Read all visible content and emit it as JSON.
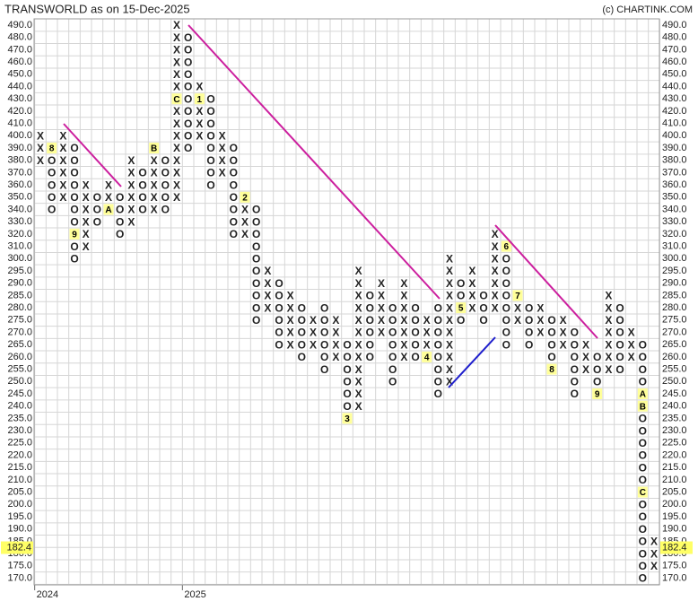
{
  "chart_data": {
    "type": "pointfigure",
    "title": "TRANSWORLD as on 15-Dec-2025",
    "credit": "(c) CHARTINK.COM",
    "ylim": [
      170,
      490
    ],
    "yticks": [
      {
        "value": 490,
        "label": "490.0"
      },
      {
        "value": 480,
        "label": "480.0"
      },
      {
        "value": 470,
        "label": "470.0"
      },
      {
        "value": 460,
        "label": "460.0"
      },
      {
        "value": 450,
        "label": "450.0"
      },
      {
        "value": 440,
        "label": "440.0"
      },
      {
        "value": 430,
        "label": "430.0"
      },
      {
        "value": 420,
        "label": "420.0"
      },
      {
        "value": 410,
        "label": "410.0"
      },
      {
        "value": 400,
        "label": "400.0"
      },
      {
        "value": 390,
        "label": "390.0"
      },
      {
        "value": 380,
        "label": "380.0"
      },
      {
        "value": 370,
        "label": "370.0"
      },
      {
        "value": 360,
        "label": "360.0"
      },
      {
        "value": 350,
        "label": "350.0"
      },
      {
        "value": 340,
        "label": "340.0"
      },
      {
        "value": 330,
        "label": "330.0"
      },
      {
        "value": 320,
        "label": "320.0"
      },
      {
        "value": 310,
        "label": "310.0"
      },
      {
        "value": 300,
        "label": "300.0"
      },
      {
        "value": 295,
        "label": "295.0"
      },
      {
        "value": 290,
        "label": "290.0"
      },
      {
        "value": 285,
        "label": "285.0"
      },
      {
        "value": 280,
        "label": "280.0"
      },
      {
        "value": 275,
        "label": "275.0"
      },
      {
        "value": 270,
        "label": "270.0"
      },
      {
        "value": 265,
        "label": "265.0"
      },
      {
        "value": 260,
        "label": "260.0"
      },
      {
        "value": 255,
        "label": "255.0"
      },
      {
        "value": 250,
        "label": "250.0"
      },
      {
        "value": 245,
        "label": "245.0"
      },
      {
        "value": 240,
        "label": "240.0"
      },
      {
        "value": 235,
        "label": "235.0"
      },
      {
        "value": 230,
        "label": "230.0"
      },
      {
        "value": 225,
        "label": "225.0"
      },
      {
        "value": 220,
        "label": "220.0"
      },
      {
        "value": 215,
        "label": "215.0"
      },
      {
        "value": 210,
        "label": "210.0"
      },
      {
        "value": 205,
        "label": "205.0"
      },
      {
        "value": 200,
        "label": "200.0"
      },
      {
        "value": 195,
        "label": "195.0"
      },
      {
        "value": 190,
        "label": "190.0"
      },
      {
        "value": 185,
        "label": "185.0"
      },
      {
        "value": 180,
        "label": "180.0"
      },
      {
        "value": 175,
        "label": "175.0"
      },
      {
        "value": 170,
        "label": "170.0"
      }
    ],
    "last_price": {
      "value": 182.4,
      "label": "182.4"
    },
    "years": [
      "2024",
      "2025"
    ],
    "colors": {
      "X": "#2e8b2e",
      "O": "#e02020"
    },
    "grid": true,
    "columns": [
      {
        "type": "X",
        "high": 400,
        "low": 380
      },
      {
        "type": "O",
        "high": 390,
        "low": 340,
        "months": [
          {
            "value": 390,
            "label": "8"
          }
        ]
      },
      {
        "type": "X",
        "high": 400,
        "low": 350
      },
      {
        "type": "O",
        "high": 390,
        "low": 300,
        "months": [
          {
            "value": 320,
            "label": "9"
          }
        ]
      },
      {
        "type": "X",
        "high": 360,
        "low": 310
      },
      {
        "type": "O",
        "high": 350,
        "low": 330
      },
      {
        "type": "X",
        "high": 360,
        "low": 340,
        "months": [
          {
            "value": 340,
            "label": "A"
          }
        ]
      },
      {
        "type": "O",
        "high": 350,
        "low": 320
      },
      {
        "type": "X",
        "high": 380,
        "low": 330
      },
      {
        "type": "O",
        "high": 370,
        "low": 340
      },
      {
        "type": "X",
        "high": 390,
        "low": 340,
        "months": [
          {
            "value": 390,
            "label": "B"
          }
        ]
      },
      {
        "type": "O",
        "high": 380,
        "low": 340
      },
      {
        "type": "X",
        "high": 490,
        "low": 350,
        "months": [
          {
            "value": 430,
            "label": "C"
          }
        ]
      },
      {
        "type": "O",
        "high": 480,
        "low": 390
      },
      {
        "type": "X",
        "high": 440,
        "low": 400,
        "months": [
          {
            "value": 430,
            "label": "1"
          }
        ]
      },
      {
        "type": "O",
        "high": 430,
        "low": 360
      },
      {
        "type": "X",
        "high": 400,
        "low": 370
      },
      {
        "type": "O",
        "high": 390,
        "low": 320
      },
      {
        "type": "X",
        "high": 350,
        "low": 320,
        "months": [
          {
            "value": 350,
            "label": "2"
          }
        ]
      },
      {
        "type": "O",
        "high": 340,
        "low": 275
      },
      {
        "type": "X",
        "high": 295,
        "low": 280
      },
      {
        "type": "O",
        "high": 290,
        "low": 265
      },
      {
        "type": "X",
        "high": 285,
        "low": 265
      },
      {
        "type": "O",
        "high": 280,
        "low": 260
      },
      {
        "type": "X",
        "high": 275,
        "low": 265
      },
      {
        "type": "O",
        "high": 280,
        "low": 255
      },
      {
        "type": "X",
        "high": 275,
        "low": 260
      },
      {
        "type": "O",
        "high": 265,
        "low": 235,
        "months": [
          {
            "value": 235,
            "label": "3"
          }
        ]
      },
      {
        "type": "X",
        "high": 295,
        "low": 240
      },
      {
        "type": "O",
        "high": 285,
        "low": 260
      },
      {
        "type": "X",
        "high": 290,
        "low": 270
      },
      {
        "type": "O",
        "high": 280,
        "low": 250
      },
      {
        "type": "X",
        "high": 290,
        "low": 260
      },
      {
        "type": "O",
        "high": 280,
        "low": 260
      },
      {
        "type": "X",
        "high": 275,
        "low": 260,
        "months": [
          {
            "value": 260,
            "label": "4"
          }
        ]
      },
      {
        "type": "O",
        "high": 280,
        "low": 245
      },
      {
        "type": "X",
        "high": 300,
        "low": 250
      },
      {
        "type": "O",
        "high": 290,
        "low": 275,
        "months": [
          {
            "value": 280,
            "label": "5"
          }
        ]
      },
      {
        "type": "X",
        "high": 295,
        "low": 280
      },
      {
        "type": "O",
        "high": 285,
        "low": 275
      },
      {
        "type": "X",
        "high": 325,
        "low": 280
      },
      {
        "type": "O",
        "high": 310,
        "low": 265,
        "months": [
          {
            "value": 310,
            "label": "6"
          }
        ]
      },
      {
        "type": "X",
        "high": 285,
        "low": 275,
        "months": [
          {
            "value": 285,
            "label": "7"
          }
        ]
      },
      {
        "type": "O",
        "high": 280,
        "low": 265
      },
      {
        "type": "X",
        "high": 280,
        "low": 270
      },
      {
        "type": "O",
        "high": 275,
        "low": 255,
        "months": [
          {
            "value": 255,
            "label": "8"
          }
        ]
      },
      {
        "type": "X",
        "high": 275,
        "low": 265
      },
      {
        "type": "O",
        "high": 270,
        "low": 245
      },
      {
        "type": "X",
        "high": 265,
        "low": 255
      },
      {
        "type": "O",
        "high": 260,
        "low": 245,
        "months": [
          {
            "value": 245,
            "label": "9"
          }
        ]
      },
      {
        "type": "X",
        "high": 285,
        "low": 255
      },
      {
        "type": "O",
        "high": 280,
        "low": 255
      },
      {
        "type": "X",
        "high": 270,
        "low": 260
      },
      {
        "type": "O",
        "high": 265,
        "low": 170,
        "months": [
          {
            "value": 245,
            "label": "A"
          },
          {
            "value": 240,
            "label": "B"
          },
          {
            "value": 205,
            "label": "C"
          }
        ]
      },
      {
        "type": "X",
        "high": 185,
        "low": 175
      }
    ]
  }
}
